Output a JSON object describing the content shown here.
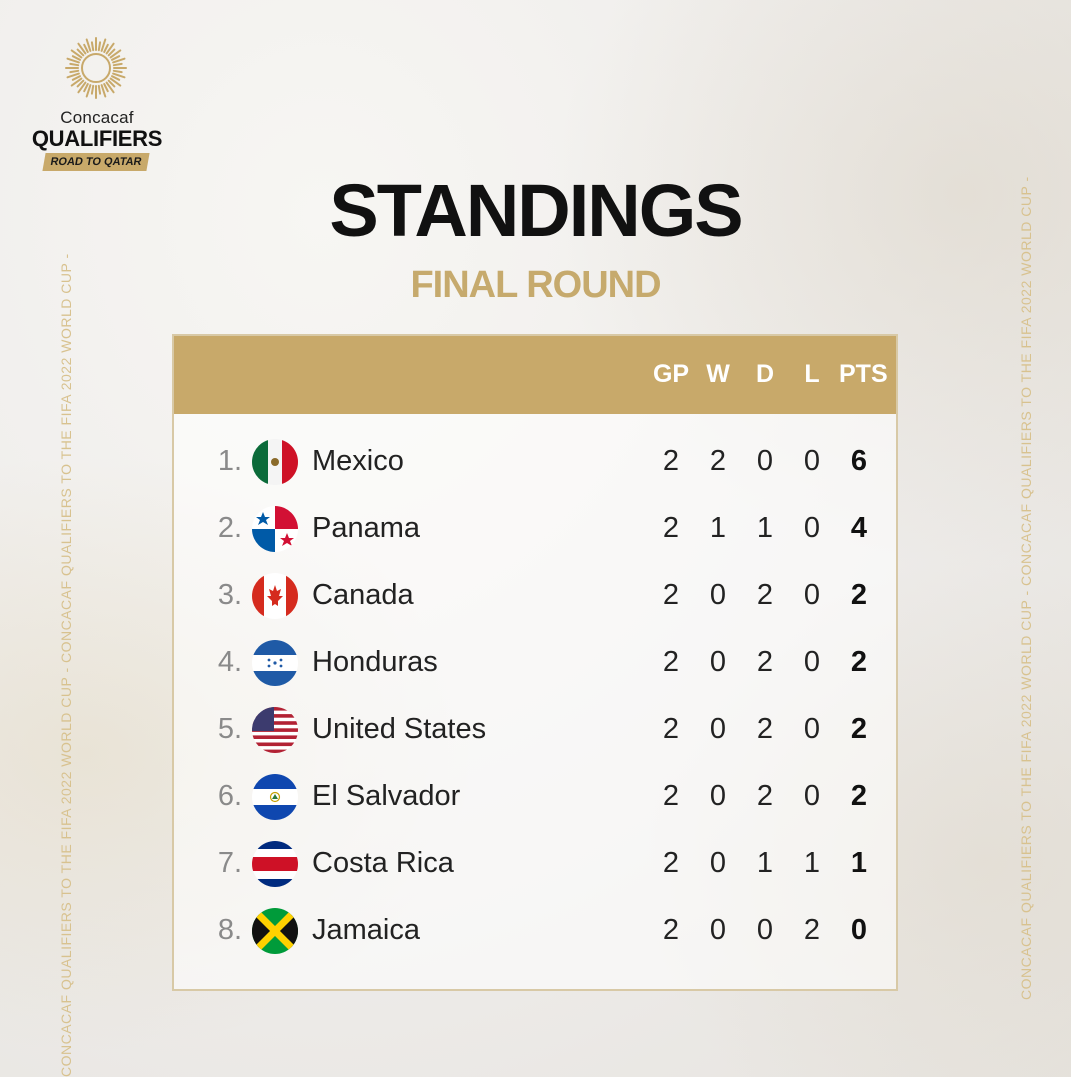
{
  "logo": {
    "brand": "Concacaf",
    "title": "QUALIFIERS",
    "tagline": "ROAD TO QATAR"
  },
  "heading": {
    "title": "STANDINGS",
    "subtitle": "FINAL ROUND"
  },
  "table": {
    "columns": [
      "GP",
      "W",
      "D",
      "L",
      "PTS"
    ],
    "rows": [
      {
        "rank": "1.",
        "team": "Mexico",
        "flag": "mexico-flag-icon",
        "gp": "2",
        "w": "2",
        "d": "0",
        "l": "0",
        "pts": "6"
      },
      {
        "rank": "2.",
        "team": "Panama",
        "flag": "panama-flag-icon",
        "gp": "2",
        "w": "1",
        "d": "1",
        "l": "0",
        "pts": "4"
      },
      {
        "rank": "3.",
        "team": "Canada",
        "flag": "canada-flag-icon",
        "gp": "2",
        "w": "0",
        "d": "2",
        "l": "0",
        "pts": "2"
      },
      {
        "rank": "4.",
        "team": "Honduras",
        "flag": "honduras-flag-icon",
        "gp": "2",
        "w": "0",
        "d": "2",
        "l": "0",
        "pts": "2"
      },
      {
        "rank": "5.",
        "team": "United States",
        "flag": "usa-flag-icon",
        "gp": "2",
        "w": "0",
        "d": "2",
        "l": "0",
        "pts": "2"
      },
      {
        "rank": "6.",
        "team": "El Salvador",
        "flag": "el-salvador-flag-icon",
        "gp": "2",
        "w": "0",
        "d": "2",
        "l": "0",
        "pts": "2"
      },
      {
        "rank": "7.",
        "team": "Costa Rica",
        "flag": "costa-rica-flag-icon",
        "gp": "2",
        "w": "0",
        "d": "1",
        "l": "1",
        "pts": "1"
      },
      {
        "rank": "8.",
        "team": "Jamaica",
        "flag": "jamaica-flag-icon",
        "gp": "2",
        "w": "0",
        "d": "0",
        "l": "2",
        "pts": "0"
      }
    ]
  },
  "side_text": "CONCACAF QUALIFIERS TO THE FIFA 2022 WORLD CUP - CONCACAF QUALIFIERS TO THE FIFA 2022 WORLD CUP -",
  "colors": {
    "accent_gold": "#c8a96a",
    "subtitle_gold": "#c6aa6d",
    "text_dark": "#111111"
  }
}
